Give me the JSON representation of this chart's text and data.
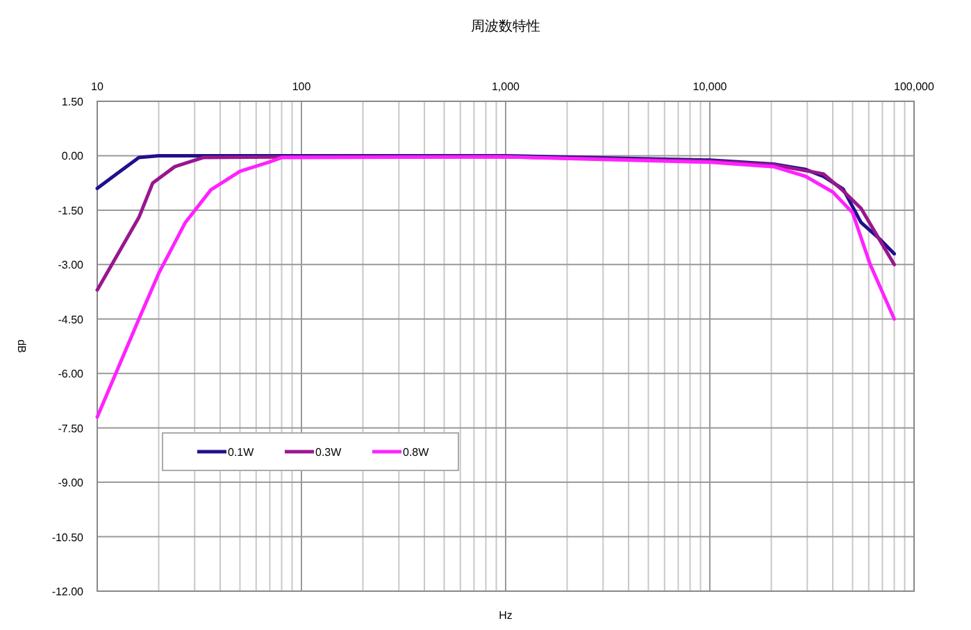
{
  "chart_data": {
    "type": "line",
    "title": "周波数特性",
    "xlabel": "Hz",
    "ylabel": "dB",
    "log": "x",
    "grid": true,
    "legend": "bottom left",
    "xlim": [
      10,
      100000
    ],
    "xticks": [
      10,
      100,
      {
        "value": 1000,
        "label": "1,000"
      },
      {
        "value": 10000,
        "label": "10,000"
      },
      {
        "value": 100000,
        "label": "100,000"
      }
    ],
    "ylim": [
      -12,
      1.5
    ],
    "yticks": [
      {
        "value": 1.5,
        "label": "1.50"
      },
      {
        "value": 0,
        "label": "0.00"
      },
      {
        "value": -1.5,
        "label": "-1.50"
      },
      {
        "value": -3,
        "label": "-3.00"
      },
      {
        "value": -4.5,
        "label": "-4.50"
      },
      {
        "value": -6,
        "label": "-6.00"
      },
      {
        "value": -7.5,
        "label": "-7.50"
      },
      {
        "value": -9,
        "label": "-9.00"
      },
      {
        "value": -10.5,
        "label": "-10.50"
      },
      {
        "value": -12,
        "label": "-12.00"
      }
    ],
    "series": [
      {
        "name": "0.1W",
        "color": "#20108c",
        "x": [
          10,
          13,
          16,
          20,
          30,
          100,
          1000,
          10000,
          20500,
          29500,
          36000,
          45000,
          55000,
          68000,
          80000
        ],
        "values": [
          -0.9,
          -0.42,
          -0.05,
          0,
          0,
          0,
          0,
          -0.12,
          -0.23,
          -0.38,
          -0.57,
          -0.92,
          -1.84,
          -2.3,
          -2.7
        ]
      },
      {
        "name": "0.3W",
        "color": "#99168f",
        "x": [
          10,
          16,
          18.7,
          24,
          33,
          100,
          1000,
          10000,
          20500,
          36000,
          44000,
          55000,
          68000,
          80000
        ],
        "values": [
          -3.7,
          -1.7,
          -0.75,
          -0.3,
          -0.05,
          -0.03,
          -0.03,
          -0.15,
          -0.25,
          -0.5,
          -0.92,
          -1.45,
          -2.33,
          -3.0
        ]
      },
      {
        "name": "0.8W",
        "color": "#ff22ff",
        "x": [
          10,
          16,
          20,
          27,
          36,
          50,
          69,
          80,
          100,
          1000,
          10000,
          20500,
          29500,
          40000,
          50000,
          61000,
          80000
        ],
        "values": [
          -7.2,
          -4.5,
          -3.24,
          -1.84,
          -0.94,
          -0.43,
          -0.18,
          -0.05,
          -0.05,
          -0.03,
          -0.18,
          -0.3,
          -0.57,
          -1.0,
          -1.57,
          -3.0,
          -4.5
        ]
      }
    ]
  }
}
